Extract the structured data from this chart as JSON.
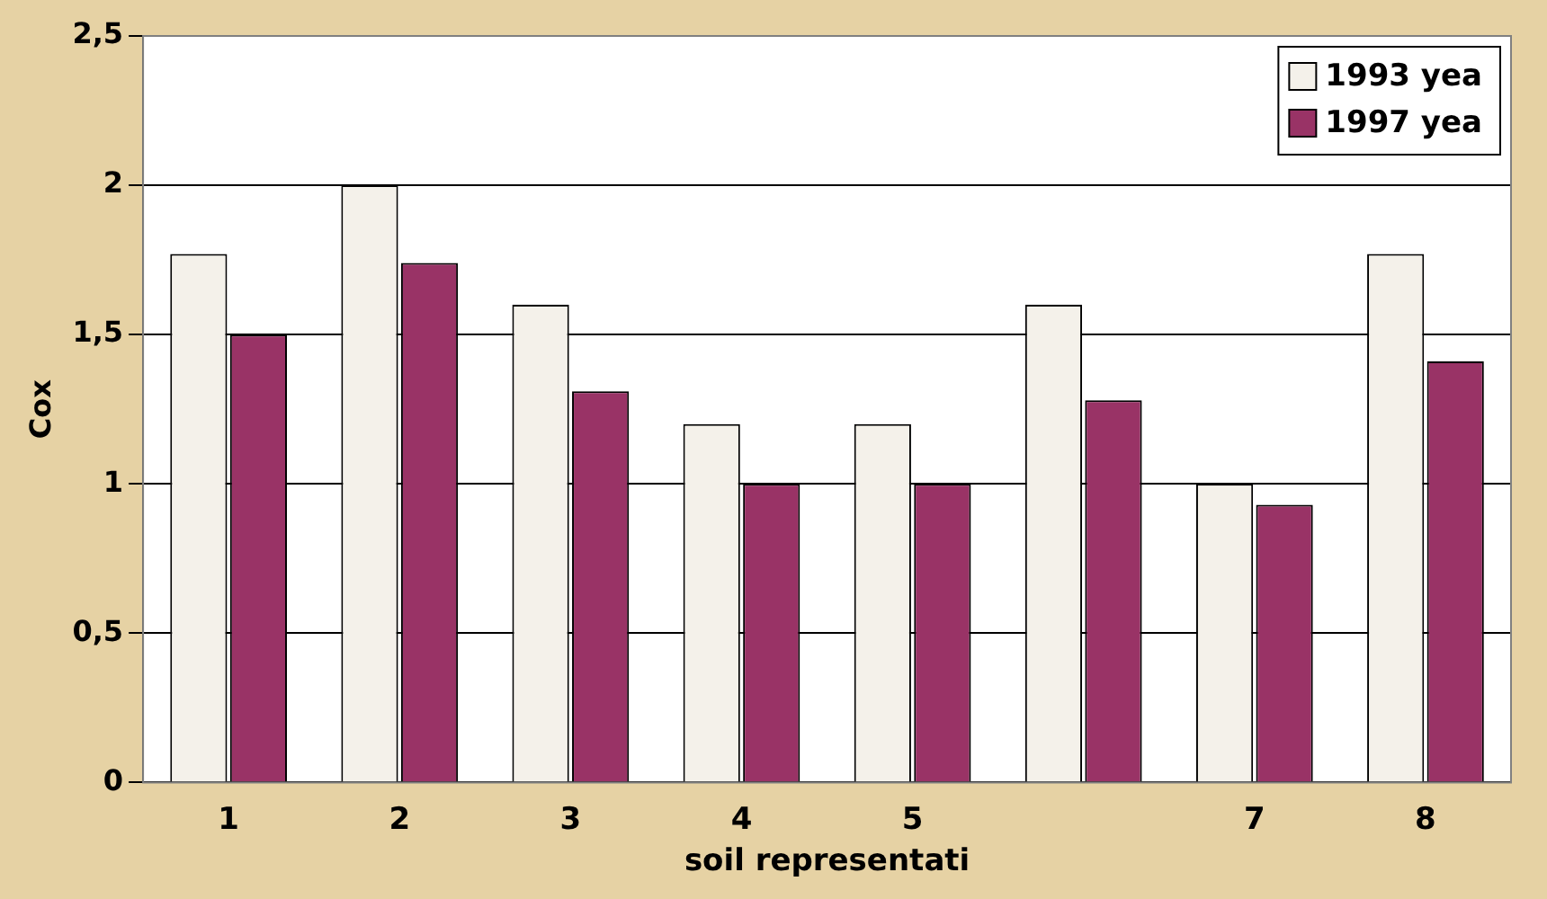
{
  "chart_data": {
    "type": "bar",
    "xlabel": "soil representati",
    "ylabel": "Cox",
    "categories": [
      "1",
      "2",
      "3",
      "4",
      "5",
      null,
      "7",
      "8"
    ],
    "series": [
      {
        "name": "1993 yea",
        "color": "#f4f1ea",
        "values": [
          1.77,
          2.0,
          1.6,
          1.2,
          1.2,
          1.6,
          1.0,
          1.77
        ]
      },
      {
        "name": "1997 yea",
        "color": "#993366",
        "values": [
          1.5,
          1.74,
          1.31,
          1.0,
          1.0,
          1.28,
          0.93,
          1.41
        ]
      }
    ],
    "ylim": [
      0,
      2.5
    ],
    "yticks": [
      0,
      {
        "value": 0.5,
        "label": "0,5"
      },
      1,
      {
        "value": 1.5,
        "label": "1,5"
      },
      2,
      {
        "value": 2.5,
        "label": "2,5"
      }
    ],
    "grid": "y",
    "legend": "top right"
  }
}
